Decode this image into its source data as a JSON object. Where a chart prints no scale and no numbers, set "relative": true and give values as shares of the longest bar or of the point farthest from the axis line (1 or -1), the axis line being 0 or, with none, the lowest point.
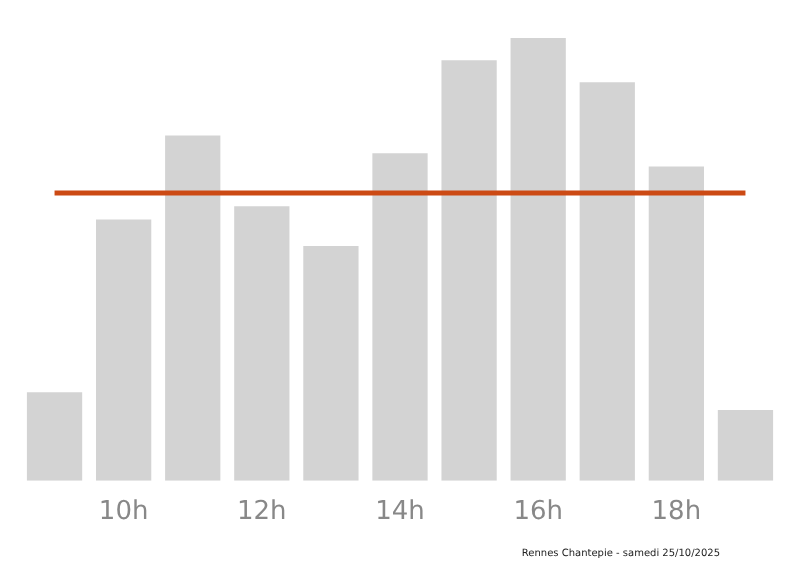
{
  "chart_data": {
    "type": "bar",
    "relative": true,
    "categories": [
      null,
      "10h",
      null,
      "12h",
      null,
      "14h",
      null,
      "16h",
      null,
      "18h",
      null
    ],
    "values": [
      0.2,
      0.59,
      0.78,
      0.62,
      0.53,
      0.74,
      0.95,
      1,
      0.9,
      0.71,
      0.16
    ],
    "color": "#d3d3d3",
    "ref_lines": [
      {
        "axis": "y",
        "value": 0.65,
        "color": "#cc4a14"
      }
    ],
    "grid": false,
    "legend": false,
    "annotations": [
      "Rennes Chantepie - samedi 25/10/2025"
    ]
  }
}
